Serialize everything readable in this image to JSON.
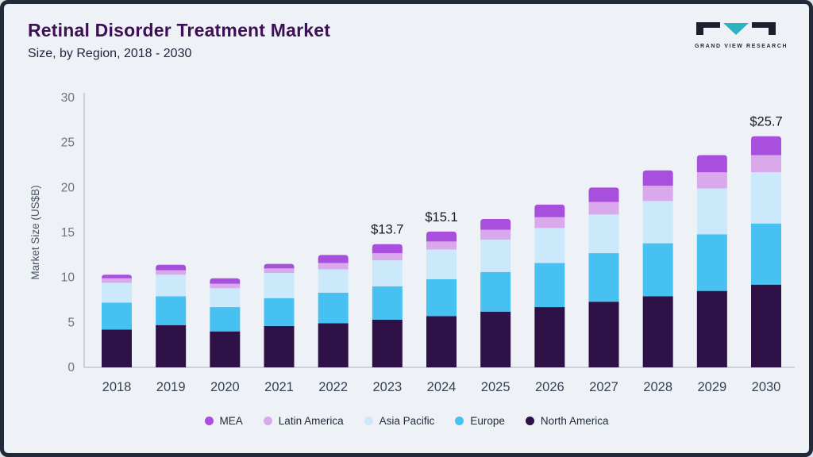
{
  "logo": {
    "text": "GRAND VIEW RESEARCH"
  },
  "colors": {
    "background": "#eef2f7",
    "border": "#222938",
    "title": "#3d0f54",
    "axis": "#c9d2da",
    "tick_label": "#6b7280",
    "x_label": "#374151",
    "annotation": "#111827"
  },
  "chart_data": {
    "type": "bar",
    "stacked": true,
    "title": "Retinal Disorder Treatment Market",
    "subtitle": "Size, by Region, 2018 - 2030",
    "ylabel": "Market Size (US$B)",
    "ylim": [
      0,
      30
    ],
    "yticks": [
      0,
      5,
      10,
      15,
      20,
      25,
      30
    ],
    "grid": false,
    "legend_position": "bottom",
    "categories": [
      "2018",
      "2019",
      "2020",
      "2021",
      "2022",
      "2023",
      "2024",
      "2025",
      "2026",
      "2027",
      "2028",
      "2029",
      "2030"
    ],
    "series": [
      {
        "name": "North America",
        "color": "#2e1147",
        "values": [
          4.2,
          4.7,
          4.0,
          4.6,
          4.9,
          5.3,
          5.7,
          6.2,
          6.7,
          7.3,
          7.9,
          8.5,
          9.2
        ]
      },
      {
        "name": "Europe",
        "color": "#47c0f2",
        "values": [
          3.0,
          3.2,
          2.7,
          3.1,
          3.4,
          3.7,
          4.1,
          4.4,
          4.9,
          5.4,
          5.9,
          6.3,
          6.8
        ]
      },
      {
        "name": "Asia Pacific",
        "color": "#cbe9fb",
        "values": [
          2.2,
          2.4,
          2.1,
          2.8,
          2.6,
          2.9,
          3.3,
          3.6,
          3.9,
          4.3,
          4.7,
          5.1,
          5.7
        ]
      },
      {
        "name": "Latin America",
        "color": "#d9a9ec",
        "values": [
          0.5,
          0.5,
          0.5,
          0.5,
          0.7,
          0.8,
          0.9,
          1.1,
          1.2,
          1.4,
          1.7,
          1.8,
          1.9
        ]
      },
      {
        "name": "MEA",
        "color": "#a94fdd",
        "values": [
          0.4,
          0.6,
          0.6,
          0.5,
          0.9,
          1.0,
          1.1,
          1.2,
          1.4,
          1.6,
          1.7,
          1.9,
          2.1
        ]
      }
    ],
    "totals": [
      10.3,
      11.4,
      9.9,
      11.5,
      12.5,
      13.7,
      15.1,
      16.5,
      18.1,
      20.0,
      21.9,
      23.6,
      25.7
    ],
    "annotations": [
      {
        "category": "2023",
        "text": "$13.7"
      },
      {
        "category": "2024",
        "text": "$15.1"
      },
      {
        "category": "2030",
        "text": "$25.7"
      }
    ]
  }
}
